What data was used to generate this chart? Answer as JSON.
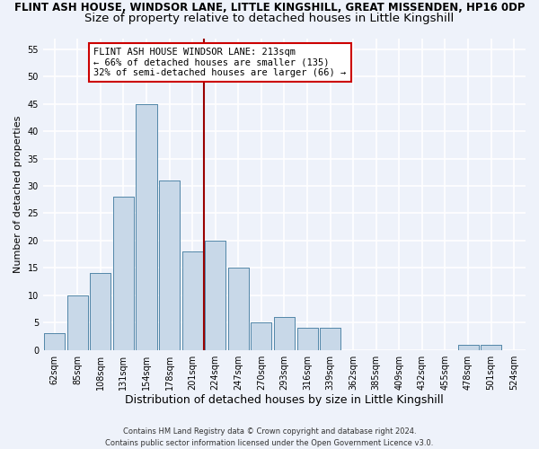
{
  "title_line1": "FLINT ASH HOUSE, WINDSOR LANE, LITTLE KINGSHILL, GREAT MISSENDEN, HP16 0DP",
  "title_line2": "Size of property relative to detached houses in Little Kingshill",
  "xlabel": "Distribution of detached houses by size in Little Kingshill",
  "ylabel": "Number of detached properties",
  "footer": "Contains HM Land Registry data © Crown copyright and database right 2024.\nContains public sector information licensed under the Open Government Licence v3.0.",
  "bin_labels": [
    "62sqm",
    "85sqm",
    "108sqm",
    "131sqm",
    "154sqm",
    "178sqm",
    "201sqm",
    "224sqm",
    "247sqm",
    "270sqm",
    "293sqm",
    "316sqm",
    "339sqm",
    "362sqm",
    "385sqm",
    "409sqm",
    "432sqm",
    "455sqm",
    "478sqm",
    "501sqm",
    "524sqm"
  ],
  "bar_values": [
    3,
    10,
    14,
    28,
    45,
    31,
    18,
    20,
    15,
    5,
    6,
    4,
    4,
    0,
    0,
    0,
    0,
    0,
    1,
    1,
    0
  ],
  "bar_color": "#c8d8e8",
  "bar_edge_color": "#5588aa",
  "background_color": "#eef2fa",
  "grid_color": "#ffffff",
  "ylim": [
    0,
    57
  ],
  "yticks": [
    0,
    5,
    10,
    15,
    20,
    25,
    30,
    35,
    40,
    45,
    50,
    55
  ],
  "vline_color": "#990000",
  "annotation_text": "FLINT ASH HOUSE WINDSOR LANE: 213sqm\n← 66% of detached houses are smaller (135)\n32% of semi-detached houses are larger (66) →",
  "annotation_box_color": "#ffffff",
  "annotation_box_edge_color": "#cc0000",
  "title1_fontsize": 8.5,
  "title2_fontsize": 9.5,
  "xlabel_fontsize": 9,
  "ylabel_fontsize": 8,
  "tick_fontsize": 7,
  "annotation_fontsize": 7.5,
  "footer_fontsize": 6
}
